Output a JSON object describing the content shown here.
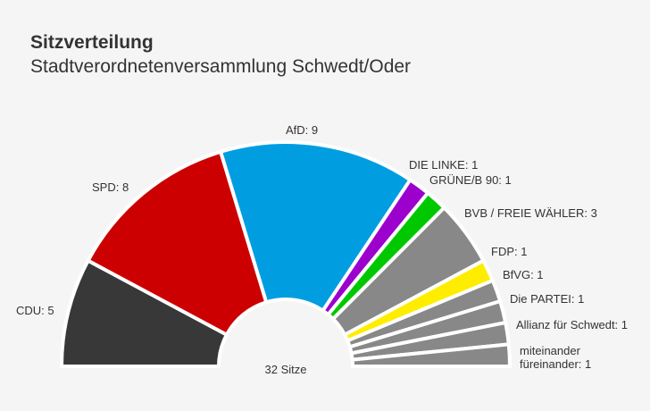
{
  "chart_data": {
    "type": "pie",
    "variant": "semicircle-donut",
    "title": "Sitzverteilung",
    "subtitle": "Stadtverordnetenversammlung Schwedt/Oder",
    "center_label": "32 Sitze",
    "slices": [
      {
        "name": "CDU",
        "value": 5,
        "color": "#383838",
        "label": "CDU: 5"
      },
      {
        "name": "SPD",
        "value": 8,
        "color": "#cc0000",
        "label": "SPD: 8"
      },
      {
        "name": "AfD",
        "value": 9,
        "color": "#009ee0",
        "label": "AfD: 9"
      },
      {
        "name": "DIE LINKE",
        "value": 1,
        "color": "#9b00cc",
        "label": "DIE LINKE: 1"
      },
      {
        "name": "GRÜNE/B 90",
        "value": 1,
        "color": "#00c800",
        "label": "GRÜNE/B 90: 1"
      },
      {
        "name": "BVB / FREIE WÄHLER",
        "value": 3,
        "color": "#888888",
        "label": "BVB / FREIE WÄHLER: 3"
      },
      {
        "name": "FDP",
        "value": 1,
        "color": "#ffed00",
        "label": "FDP: 1"
      },
      {
        "name": "BfVG",
        "value": 1,
        "color": "#888888",
        "label": "BfVG: 1"
      },
      {
        "name": "Die PARTEI",
        "value": 1,
        "color": "#888888",
        "label": "Die PARTEI: 1"
      },
      {
        "name": "Allianz für Schwedt",
        "value": 1,
        "color": "#888888",
        "label": "Allianz für Schwedt: 1"
      },
      {
        "name": "miteinander füreinander",
        "value": 1,
        "color": "#888888",
        "label": [
          "miteinander",
          "füreinander: 1"
        ]
      }
    ]
  }
}
